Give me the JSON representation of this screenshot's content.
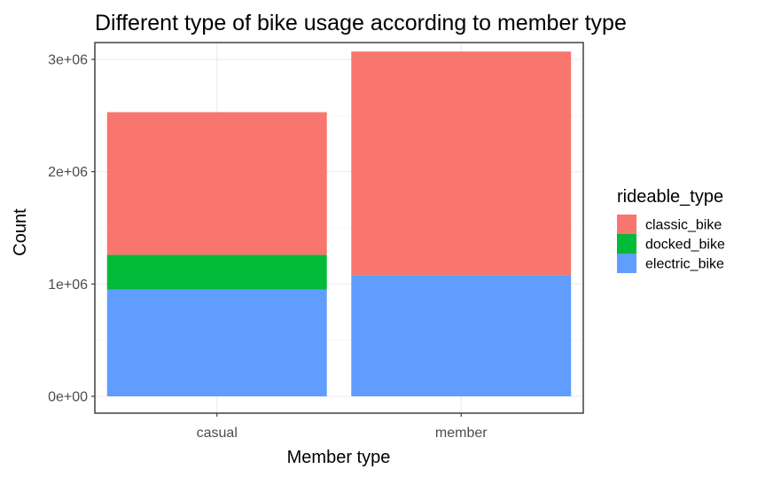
{
  "chart_data": {
    "type": "bar",
    "stacked": true,
    "title": "Different type of bike usage according to member type",
    "xlabel": "Member type",
    "ylabel": "Count",
    "categories": [
      "casual",
      "member"
    ],
    "series": [
      {
        "name": "classic_bike",
        "color": "#F8766D",
        "values": [
          1270000,
          1990000
        ]
      },
      {
        "name": "docked_bike",
        "color": "#00BA38",
        "values": [
          310000,
          0
        ]
      },
      {
        "name": "electric_bike",
        "color": "#619CFF",
        "values": [
          950000,
          1080000
        ]
      }
    ],
    "stack_order_bottom_to_top": [
      "electric_bike",
      "docked_bike",
      "classic_bike"
    ],
    "ylim": [
      -150000,
      3150000
    ],
    "y_ticks": [
      0,
      1000000,
      2000000,
      3000000
    ],
    "y_tick_labels": [
      "0e+00",
      "1e+06",
      "2e+06",
      "3e+06"
    ],
    "grid": true,
    "legend": {
      "title": "rideable_type",
      "position": "right"
    }
  }
}
